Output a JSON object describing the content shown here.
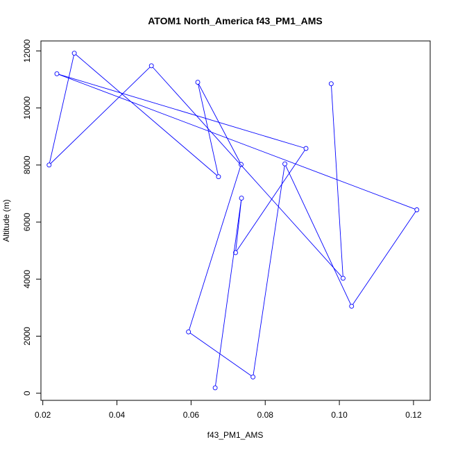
{
  "chart_data": {
    "type": "line",
    "title": "ATOM1 North_America f43_PM1_AMS",
    "xlabel": "f43_PM1_AMS",
    "ylabel": "Altitude (m)",
    "xlim": [
      0.0195,
      0.1245
    ],
    "ylim": [
      -250,
      12350
    ],
    "xticks": [
      0.02,
      0.04,
      0.06,
      0.08,
      0.1,
      0.12
    ],
    "xtick_labels": [
      "0.02",
      "0.04",
      "0.06",
      "0.08",
      "0.10",
      "0.12"
    ],
    "yticks": [
      0,
      2000,
      4000,
      6000,
      8000,
      10000,
      12000
    ],
    "ytick_labels": [
      "0",
      "2000",
      "4000",
      "6000",
      "8000",
      "10000",
      "12000"
    ],
    "grid": false,
    "line_color": "#0000ff",
    "marker": "open-circle",
    "series": [
      {
        "x": [
          0.0978,
          0.101,
          0.0493,
          0.0217,
          0.0285,
          0.0674,
          0.0618,
          0.0735,
          0.0593,
          0.0767,
          0.0853,
          0.1033,
          0.1209,
          0.0238,
          0.091,
          0.072,
          0.0736,
          0.0665
        ],
        "y": [
          10850,
          4030,
          11480,
          8000,
          11920,
          7590,
          10900,
          8020,
          2150,
          570,
          8040,
          3050,
          6430,
          11200,
          8580,
          4930,
          6840,
          190
        ]
      }
    ]
  }
}
